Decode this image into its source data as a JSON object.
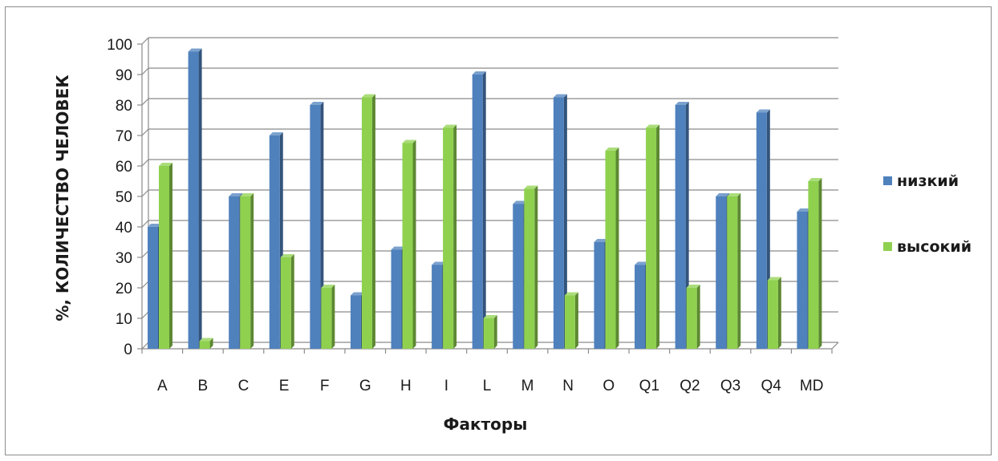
{
  "chart_data": {
    "type": "bar",
    "three_d": true,
    "title": "",
    "xlabel": "Факторы",
    "ylabel": "%, КОЛИЧЕСТВО ЧЕЛОВЕК",
    "ylim": [
      0,
      100
    ],
    "yticks": [
      0,
      10,
      20,
      30,
      40,
      50,
      60,
      70,
      80,
      90,
      100
    ],
    "grid": true,
    "legend_position": "right",
    "categories": [
      "A",
      "B",
      "C",
      "E",
      "F",
      "G",
      "H",
      "I",
      "L",
      "M",
      "N",
      "O",
      "Q1",
      "Q2",
      "Q3",
      "Q4",
      "MD"
    ],
    "series": [
      {
        "name": "низкий",
        "color": "#4f81bd",
        "values": [
          40,
          97.5,
          50,
          70,
          80,
          17.5,
          32.5,
          27.5,
          90,
          47.5,
          82.5,
          35,
          27.5,
          80,
          50,
          77.5,
          45
        ]
      },
      {
        "name": "высокий",
        "color": "#8fd14f",
        "values": [
          60,
          2.5,
          50,
          30,
          20,
          82.5,
          67.5,
          72.5,
          10,
          52.5,
          17.5,
          65,
          72.5,
          20,
          50,
          22.5,
          55
        ]
      }
    ]
  }
}
